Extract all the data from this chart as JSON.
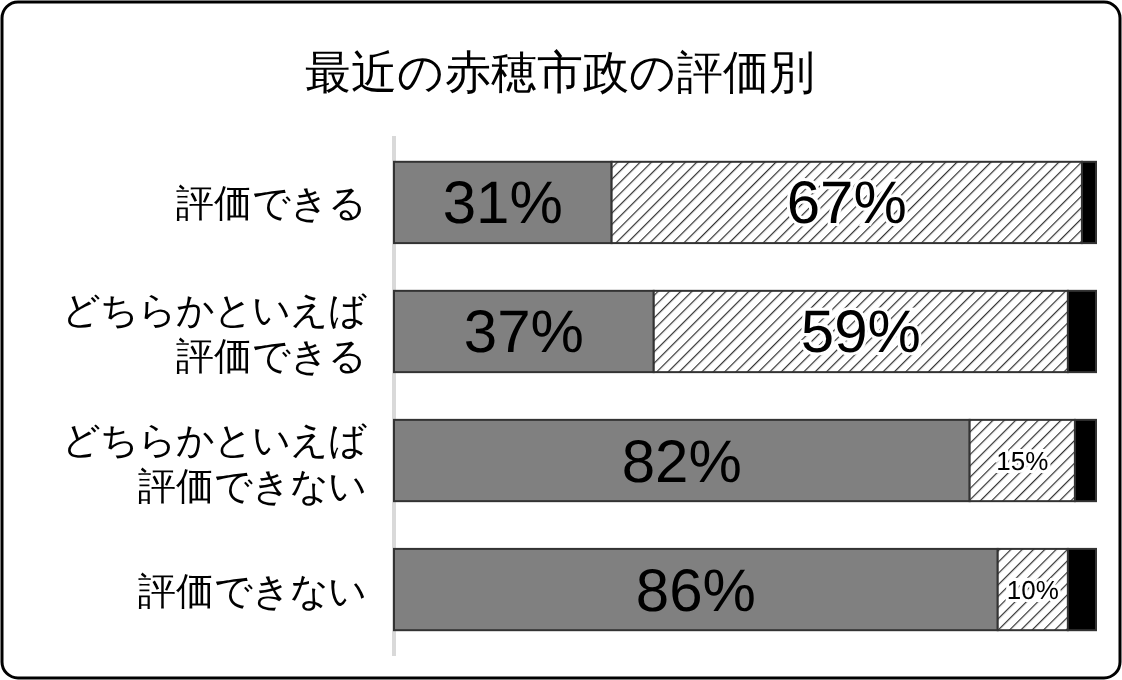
{
  "chart_data": {
    "type": "bar",
    "orientation": "horizontal",
    "stacked": true,
    "title": "最近の赤穂市政の評価別",
    "categories": [
      "評価できる",
      "どちらかといえば評価できる",
      "どちらかといえば評価できない",
      "評価できない"
    ],
    "xlim": [
      0,
      100
    ],
    "series": [
      {
        "color": "#808080",
        "values": [
          31,
          37,
          82,
          86
        ],
        "value_labels": [
          "31%",
          "37%",
          "82%",
          "86%"
        ]
      },
      {
        "color": "#333333",
        "values": [
          67,
          59,
          15,
          10
        ],
        "value_labels": [
          "67%",
          "59%",
          "15%",
          "10%"
        ]
      },
      {
        "color": "#000000",
        "values": [
          2,
          4,
          3,
          4
        ]
      }
    ],
    "tick_labels": "y",
    "legend": false
  }
}
